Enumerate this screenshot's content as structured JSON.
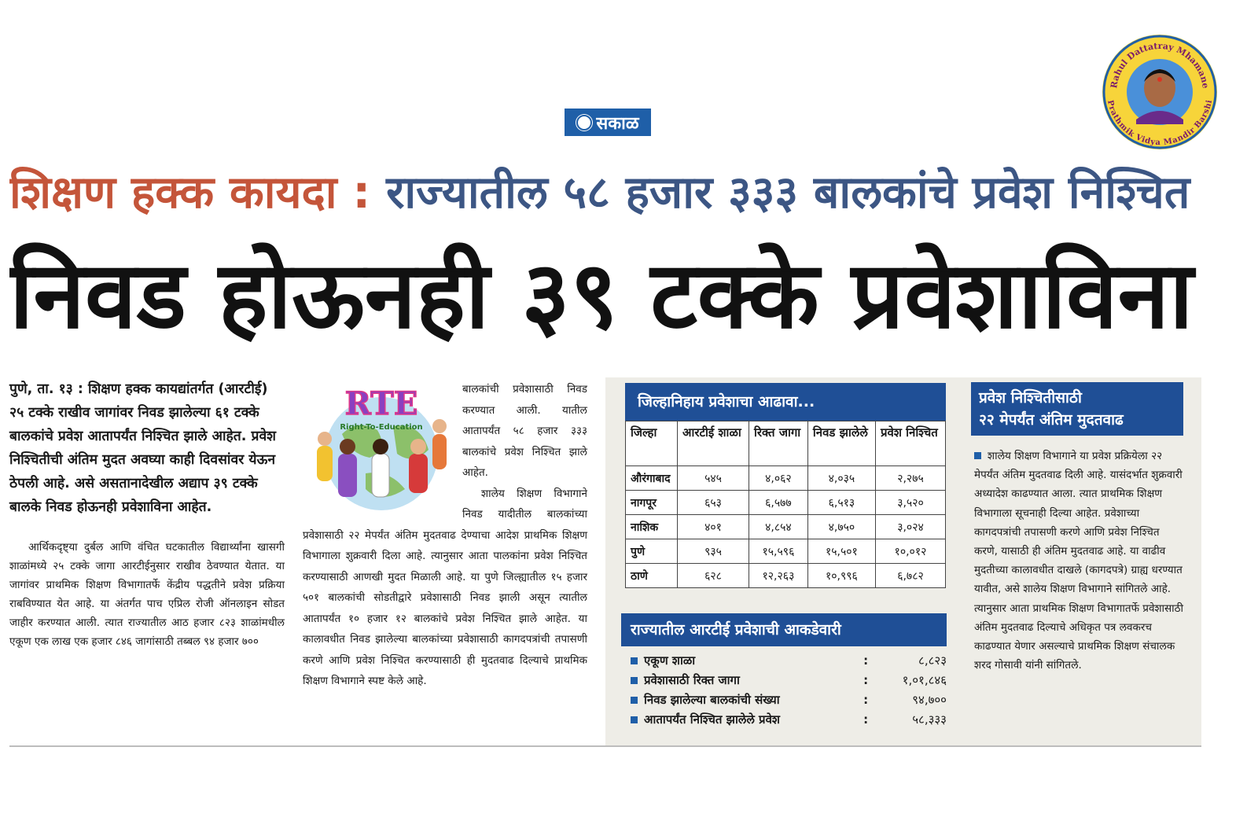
{
  "badge": {
    "top_text": "Rahul Dattatray Mhamane",
    "bottom_text": "Prathmik Vidya Mandir Barshi"
  },
  "masthead": "सकाळ",
  "kicker": {
    "label": "शिक्षण हक्क कायदा :",
    "text": "राज्यातील ५८ हजार ३३३ बालकांचे प्रवेश निश्चित"
  },
  "headline": "निवड होऊनही ३९ टक्के प्रवेशाविना",
  "column1": {
    "lead": "पुणे, ता. १३ : शिक्षण हक्क कायद्यांतर्गत (आरटीई) २५ टक्के राखीव जागांवर निवड झालेल्या ६१ टक्के बालकांचे प्रवेश आतापर्यंत निश्चित झाले आहेत. प्रवेश निश्चितीची अंतिम मुदत अवघ्या काही दिवसांवर येऊन ठेपली आहे. असे असतानादेखील अद्याप ३९ टक्के बालके निवड होऊनही प्रवेशाविना आहेत.",
    "body": "आर्थिकदृष्ट्या दुर्बल आणि वंचित घटकातील विद्यार्थ्यांना खासगी शाळांमध्ये २५ टक्के जागा आरटीईनुसार राखीव ठेवण्यात येतात. या जागांवर प्राथमिक शिक्षण विभागातर्फे केंद्रीय पद्धतीने प्रवेश प्रक्रिया राबविण्यात येत आहे. या अंतर्गत पाच एप्रिल रोजी ऑनलाइन सोडत जाहीर करण्यात आली. त्यात राज्यातील आठ हजार ८२३ शाळांमधील एकूण एक लाख एक हजार ८४६ जागांसाठी तब्बल ९४ हजार ७००"
  },
  "column2": {
    "image": {
      "title": "RTE",
      "subtitle": "Right-To-Education"
    },
    "paragraphs": [
      "बालकांची प्रवेशासाठी निवड करण्यात आली. यातील आतापर्यंत ५८ हजार ३३३ बालकांचे प्रवेश निश्चित झाले आहेत.",
      "शालेय शिक्षण विभागाने निवड यादीतील बालकांच्या प्रवेशासाठी २२ मेपर्यंत अंतिम मुदतवाढ देण्याचा आदेश प्राथमिक शिक्षण विभागाला शुक्रवारी दिला आहे. त्यानुसार आता पालकांना प्रवेश निश्चित करण्यासाठी आणखी मुदत मिळाली आहे. या पुणे जिल्ह्यातील १५ हजार ५०१ बालकांची सोडतीद्वारे प्रवेशासाठी निवड झाली असून त्यातील आतापर्यंत १० हजार १२ बालकांचे प्रवेश निश्चित झाले आहेत. या कालावधीत निवड झालेल्या बालकांच्या प्रवेशासाठी कागदपत्रांची तपासणी करणे आणि प्रवेश निश्चित करण्यासाठी ही मुदतवाढ दिल्याचे प्राथमिक शिक्षण विभागाने स्पष्ट केले आहे."
    ]
  },
  "table": {
    "title": "जिल्हानिहाय प्रवेशाचा आढावा...",
    "headers": [
      "जिल्हा",
      "आरटीई शाळा",
      "रिक्त जागा",
      "निवड झालेले",
      "प्रवेश निश्चित"
    ],
    "rows": [
      [
        "औरंगाबाद",
        "५४५",
        "४,०६२",
        "४,०३५",
        "२,२७५"
      ],
      [
        "नागपूर",
        "६५३",
        "६,५७७",
        "६,५१३",
        "३,५२०"
      ],
      [
        "नाशिक",
        "४०१",
        "४,८५४",
        "४,७५०",
        "३,०२४"
      ],
      [
        "पुणे",
        "९३५",
        "१५,५९६",
        "१५,५०१",
        "१०,०१२"
      ],
      [
        "ठाणे",
        "६२८",
        "१२,२६३",
        "१०,९९६",
        "६,७८२"
      ]
    ]
  },
  "summary": {
    "title": "राज्यातील आरटीई प्रवेशाची आकडेवारी",
    "separator": ":",
    "items": [
      {
        "label": "एकूण शाळा",
        "value": "८,८२३"
      },
      {
        "label": "प्रवेशासाठी रिक्त जागा",
        "value": "१,०१,८४६"
      },
      {
        "label": "निवड झालेल्या बालकांची संख्या",
        "value": "९४,७००"
      },
      {
        "label": "आतापर्यंत निश्चित झालेले प्रवेश",
        "value": "५८,३३३"
      }
    ]
  },
  "sidebar": {
    "title": [
      "प्रवेश निश्चितीसाठी",
      "२२ मेपर्यंत अंतिम मुदतवाढ"
    ],
    "text": "शालेय शिक्षण विभागाने या प्रवेश प्रक्रियेला २२ मेपर्यंत अंतिम मुदतवाढ दिली आहे. यासंदर्भात शुक्रवारी अध्यादेश काढण्यात आला. त्यात प्राथमिक शिक्षण विभागाला सूचनाही दिल्या आहेत. प्रवेशाच्या कागदपत्रांची तपासणी करणे आणि प्रवेश निश्चित करणे, यासाठी ही अंतिम मुदतवाढ आहे. या वाढीव मुदतीच्या कालावधीत दाखले (कागदपत्रे) ग्राह्य धरण्यात यावीत, असे शालेय शिक्षण विभागाने सांगितले आहे. त्यानुसार आता प्राथमिक शिक्षण विभागातर्फे प्रवेशासाठी अंतिम मुदतवाढ दिल्याचे अधिकृत पत्र लवकरच काढण्यात येणार असल्याचे प्राथमिक शिक्षण संचालक शरद गोसावी यांनी सांगितले."
  }
}
